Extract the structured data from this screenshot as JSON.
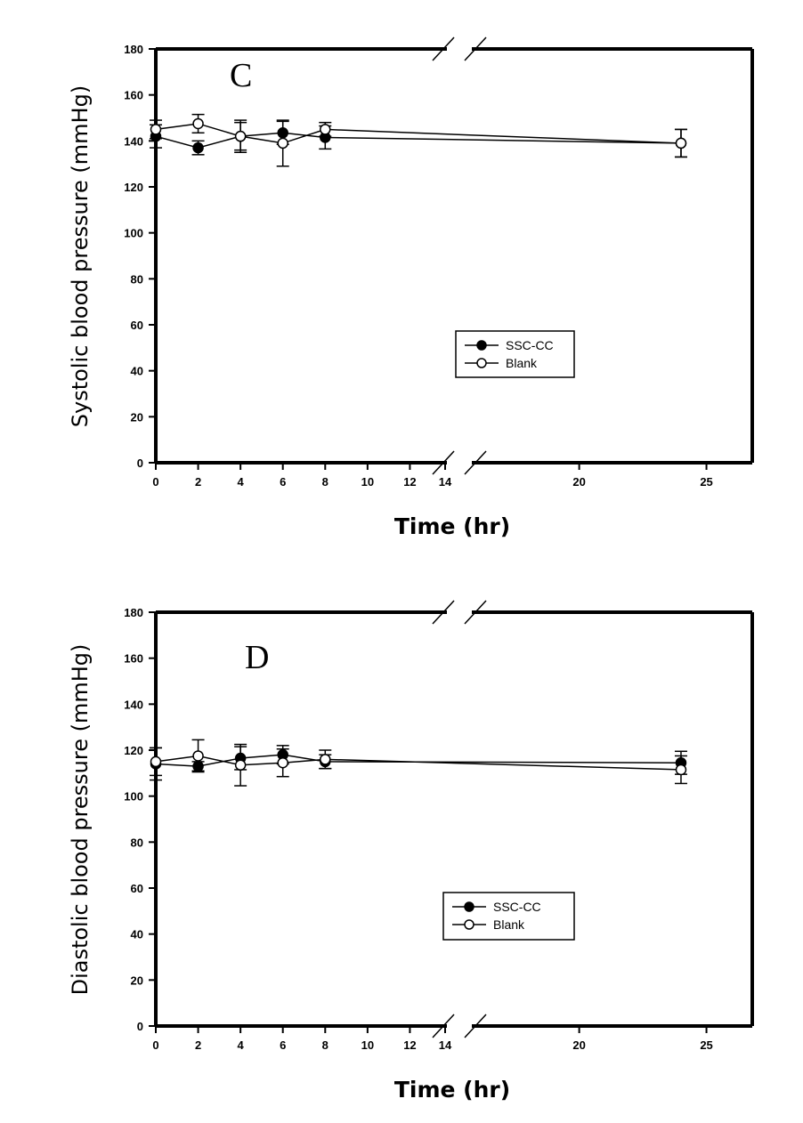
{
  "chart_data": [
    {
      "type": "line",
      "panel": "C",
      "ylabel": "Systolic blood pressure (mmHg)",
      "xlabel": "Time (hr)",
      "ylim": [
        0,
        180
      ],
      "yticks": [
        0,
        20,
        40,
        60,
        80,
        100,
        120,
        140,
        160,
        180
      ],
      "xticks": [
        0,
        2,
        4,
        6,
        8,
        10,
        12,
        14,
        20,
        25
      ],
      "x_axis_break": [
        14,
        15.5
      ],
      "grid": false,
      "legend_position": "center-right",
      "series": [
        {
          "name": "SSC-CC",
          "marker": "filled-circle",
          "x": [
            0,
            2,
            4,
            6,
            8,
            24
          ],
          "y": [
            142,
            137,
            142,
            143.5,
            141.5,
            139
          ],
          "err": [
            5,
            3,
            6,
            5,
            5,
            6
          ]
        },
        {
          "name": "Blank",
          "marker": "open-circle",
          "x": [
            0,
            2,
            4,
            6,
            8,
            24
          ],
          "y": [
            145,
            147.5,
            142,
            139,
            145,
            139
          ],
          "err": [
            4,
            4,
            7,
            10,
            3,
            6
          ]
        }
      ]
    },
    {
      "type": "line",
      "panel": "D",
      "ylabel": "Diastolic blood pressure (mmHg)",
      "xlabel": "Time (hr)",
      "ylim": [
        0,
        180
      ],
      "yticks": [
        0,
        20,
        40,
        60,
        80,
        100,
        120,
        140,
        160,
        180
      ],
      "xticks": [
        0,
        2,
        4,
        6,
        8,
        10,
        12,
        14,
        20,
        25
      ],
      "x_axis_break": [
        14,
        15.5
      ],
      "grid": false,
      "legend_position": "center-right",
      "series": [
        {
          "name": "SSC-CC",
          "marker": "filled-circle",
          "x": [
            0,
            2,
            4,
            6,
            8,
            24
          ],
          "y": [
            114,
            113,
            116.5,
            118,
            115,
            114.5
          ],
          "err": [
            7,
            2,
            5,
            4,
            3,
            5
          ]
        },
        {
          "name": "Blank",
          "marker": "open-circle",
          "x": [
            0,
            2,
            4,
            6,
            8,
            24
          ],
          "y": [
            115,
            117.5,
            113.5,
            114.5,
            116,
            111.5
          ],
          "err": [
            6,
            7,
            9,
            6,
            4,
            6
          ]
        }
      ]
    }
  ]
}
